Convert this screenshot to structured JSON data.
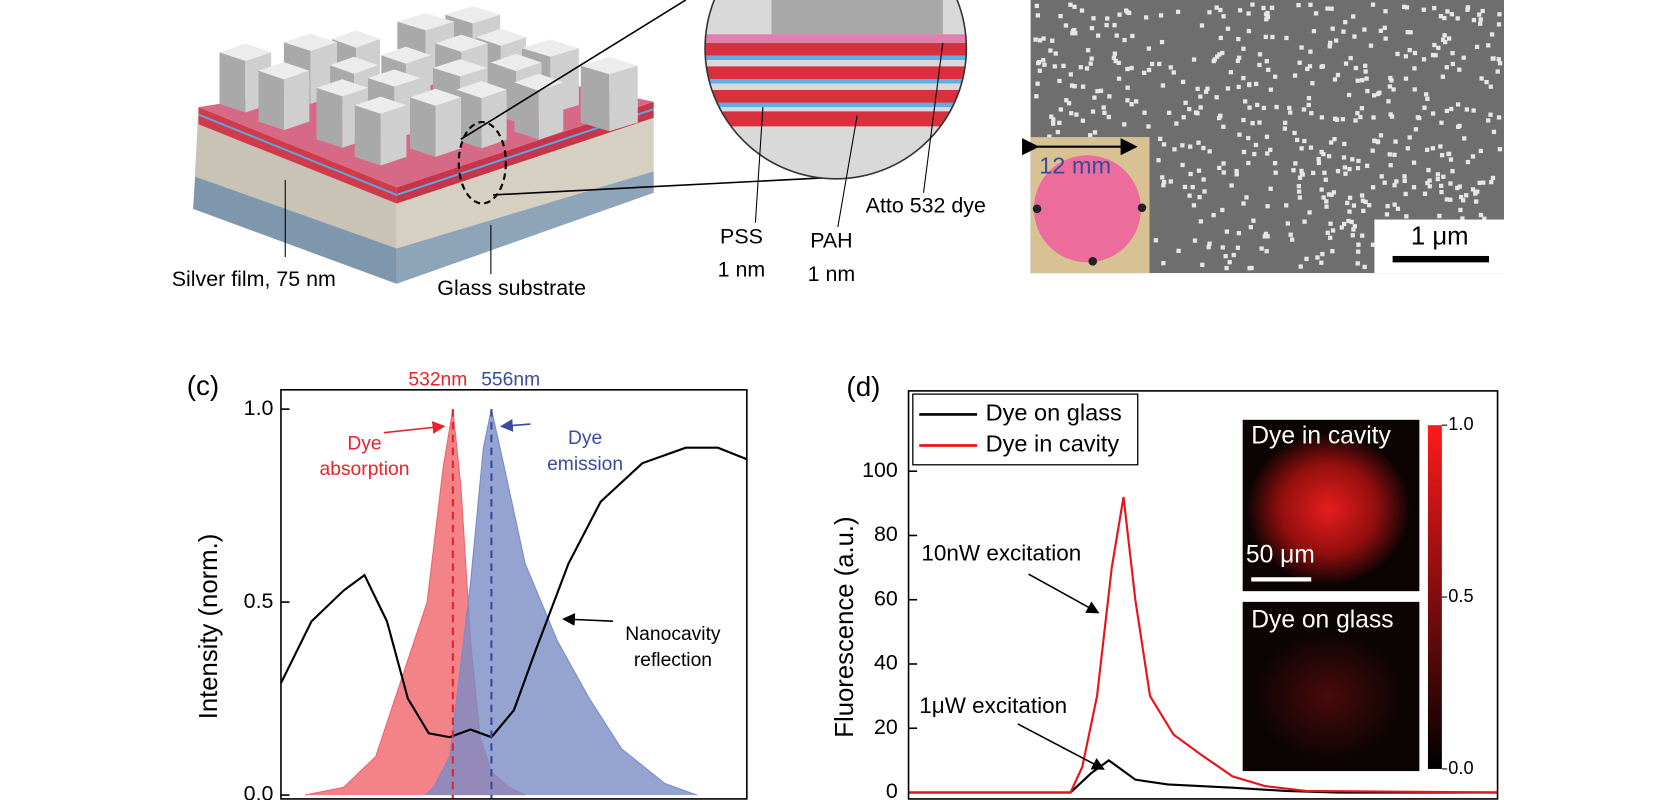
{
  "figure": {
    "panel_a": {
      "labels": [
        "Silver film, 75 nm",
        "Glass substrate"
      ]
    },
    "panel_b": {
      "labels": [
        "PSS",
        "1 nm",
        "PAH",
        "1 nm",
        "Atto 532 dye"
      ]
    },
    "sem": {
      "inset_label": "12 mm",
      "scale_bar": "1 μm"
    }
  },
  "chart_data": [
    {
      "type": "line",
      "panel_label": "(c)",
      "ylabel": "Intensity (norm.)",
      "xlim": [
        425,
        715
      ],
      "ylim": [
        -0.01,
        1.05
      ],
      "yticks": [
        {
          "value": 0,
          "label": "0.0"
        },
        {
          "value": 0.5,
          "label": "0.5"
        },
        {
          "value": 1,
          "label": "1.0"
        }
      ],
      "series": [
        {
          "color": "#f0646c",
          "fill": true,
          "x": [
            440,
            464,
            484,
            500,
            516,
            526,
            532,
            537,
            543,
            549,
            556,
            567,
            577
          ],
          "values": [
            0,
            0.02,
            0.1,
            0.3,
            0.5,
            0.85,
            1.0,
            0.8,
            0.4,
            0.15,
            0.06,
            0.02,
            0
          ]
        },
        {
          "color": "#7b8cc6",
          "fill": true,
          "x": [
            515,
            520,
            530,
            543,
            551,
            556,
            564,
            577,
            597,
            617,
            637,
            664,
            684
          ],
          "values": [
            0,
            0.02,
            0.1,
            0.55,
            0.9,
            1.0,
            0.85,
            0.6,
            0.4,
            0.25,
            0.12,
            0.03,
            0
          ]
        },
        {
          "color": "#000000",
          "fill": false,
          "x": [
            425,
            444,
            464,
            477,
            491,
            504,
            517,
            530,
            543,
            556,
            570,
            584,
            604,
            624,
            650,
            677,
            697,
            715
          ],
          "values": [
            0.29,
            0.45,
            0.53,
            0.57,
            0.45,
            0.25,
            0.16,
            0.15,
            0.17,
            0.15,
            0.22,
            0.38,
            0.6,
            0.76,
            0.86,
            0.9,
            0.9,
            0.87
          ]
        }
      ],
      "markers": [
        {
          "x": 532,
          "label": "532nm",
          "color": "#e8232b"
        },
        {
          "x": 556,
          "label": "556nm",
          "color": "#3a4aa0"
        }
      ],
      "annotations": [
        {
          "lines": [
            "Dye",
            "absorption"
          ],
          "color": "#e8232b"
        },
        {
          "lines": [
            "Dye",
            "emission"
          ],
          "color": "#3a4aa0"
        },
        {
          "lines": [
            "Nanocavity",
            "reflection"
          ],
          "color": "#000000"
        }
      ]
    },
    {
      "type": "line",
      "panel_label": "(d)",
      "ylabel": "Fluorescence (a.u.)",
      "xlim": [
        500,
        700
      ],
      "ylim": [
        -2,
        125
      ],
      "yticks": [
        0,
        20,
        40,
        60,
        80,
        100
      ],
      "legend": "upper left",
      "series": [
        {
          "name": "Dye on glass",
          "color": "#000000",
          "x": [
            500,
            555,
            562,
            568,
            571,
            577,
            588,
            610,
            628,
            646,
            700
          ],
          "values": [
            0,
            0,
            6,
            10,
            8,
            4,
            2.5,
            1.5,
            0.5,
            0,
            0
          ]
        },
        {
          "name": "Dye in cavity",
          "color": "#e8141c",
          "x": [
            500,
            555,
            559,
            564,
            569,
            573,
            577,
            582,
            590,
            599,
            610,
            621,
            635,
            700
          ],
          "values": [
            0,
            0,
            8,
            30,
            70,
            92,
            60,
            30,
            18,
            12,
            5,
            2,
            0.5,
            0
          ]
        }
      ],
      "annotations": [
        "10nW excitation",
        "1μW excitation"
      ],
      "inset": {
        "titles": [
          "Dye in cavity",
          "Dye on glass"
        ],
        "scale_bar": "50 μm",
        "colorbar": {
          "lim": [
            0,
            1
          ],
          "ticks": [
            {
              "value": 1,
              "label": "1.0"
            },
            {
              "value": 0.5,
              "label": "0.5"
            },
            {
              "value": 0,
              "label": "0.0"
            }
          ]
        }
      }
    }
  ]
}
